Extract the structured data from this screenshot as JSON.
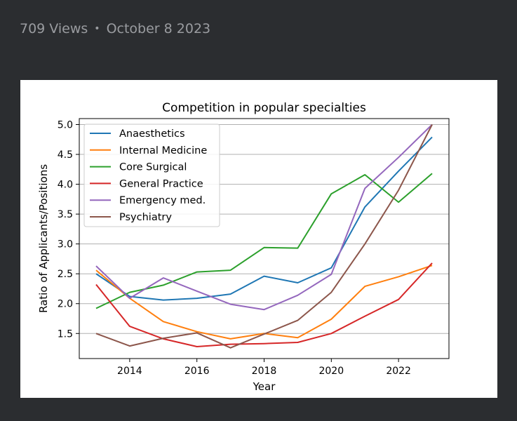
{
  "post": {
    "views": "709 Views",
    "separator": "•",
    "date": "October 8 2023"
  },
  "chart_data": {
    "type": "line",
    "title": "Competition in popular specialties",
    "xlabel": "Year",
    "ylabel": "Ratio of Applicants/Positions",
    "x": [
      2013,
      2014,
      2015,
      2016,
      2017,
      2018,
      2019,
      2020,
      2021,
      2022,
      2023
    ],
    "xlim": [
      2012.5,
      2023.5
    ],
    "ylim": [
      1.08,
      5.1
    ],
    "xticks": [
      2014,
      2016,
      2018,
      2020,
      2022
    ],
    "yticks": [
      1.5,
      2.0,
      2.5,
      3.0,
      3.5,
      4.0,
      4.5,
      5.0
    ],
    "ytick_labels": [
      "1.5",
      "2.0",
      "2.5",
      "3.0",
      "3.5",
      "4.0",
      "4.5",
      "5.0"
    ],
    "grid": "y",
    "legend_position": "top-left",
    "series": [
      {
        "name": "Anaesthetics",
        "color": "#1f77b4",
        "values": [
          2.5,
          2.12,
          2.06,
          2.09,
          2.16,
          2.46,
          2.35,
          2.6,
          3.62,
          4.22,
          4.79
        ]
      },
      {
        "name": "Internal Medicine",
        "color": "#ff7f0e",
        "values": [
          2.56,
          2.09,
          1.7,
          1.53,
          1.41,
          1.5,
          1.43,
          1.74,
          2.29,
          2.45,
          2.64
        ]
      },
      {
        "name": "Core Surgical",
        "color": "#2ca02c",
        "values": [
          1.92,
          2.19,
          2.31,
          2.53,
          2.56,
          2.94,
          2.93,
          3.84,
          4.16,
          3.7,
          4.18
        ]
      },
      {
        "name": "General Practice",
        "color": "#d62728",
        "values": [
          2.32,
          1.62,
          1.41,
          1.28,
          1.32,
          1.33,
          1.35,
          1.5,
          1.79,
          2.07,
          2.68
        ]
      },
      {
        "name": "Emergency med.",
        "color": "#9467bd",
        "values": [
          2.63,
          2.09,
          2.43,
          2.21,
          1.99,
          1.9,
          2.14,
          2.49,
          3.93,
          4.45,
          5.0
        ]
      },
      {
        "name": "Psychiatry",
        "color": "#8c564b",
        "values": [
          1.5,
          1.29,
          1.42,
          1.51,
          1.26,
          1.49,
          1.72,
          2.19,
          3.0,
          3.9,
          5.0
        ]
      }
    ]
  }
}
